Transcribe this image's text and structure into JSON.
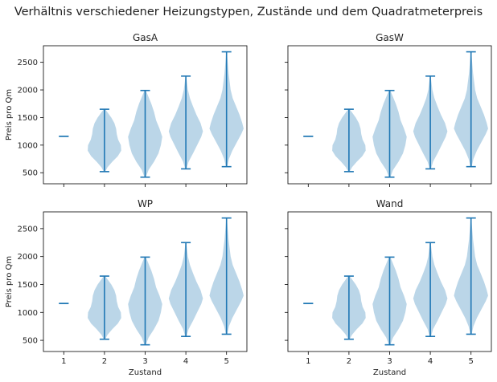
{
  "figure": {
    "suptitle": "Verhältnis verschiedener Heizungstypen, Zustände und dem Quadratmeterpreis"
  },
  "style": {
    "violin_fill": "#1f77b4",
    "violin_fill_opacity": 0.3,
    "line_color": "#1f77b4",
    "axis_color": "#000000"
  },
  "chart_data": [
    {
      "type": "violin",
      "title": "GasA",
      "xlabel": "",
      "ylabel": "Preis pro Qm",
      "x_ticks": [
        "1",
        "2",
        "3",
        "4",
        "5"
      ],
      "x_tick_labels_visible": false,
      "y_ticks": [
        500,
        1000,
        1500,
        2000,
        2500
      ],
      "y_tick_labels_visible": true,
      "ylim": [
        300,
        2800
      ],
      "grid": false,
      "violins": [
        {
          "x": 1,
          "min": 1160,
          "max": 1160,
          "width": 0,
          "shape": [
            [
              1160,
              0
            ]
          ]
        },
        {
          "x": 2,
          "min": 520,
          "max": 1650,
          "width": 0.42,
          "shape": [
            [
              520,
              0.04
            ],
            [
              600,
              0.18
            ],
            [
              700,
              0.46
            ],
            [
              800,
              0.78
            ],
            [
              900,
              0.98
            ],
            [
              1000,
              0.96
            ],
            [
              1100,
              0.8
            ],
            [
              1200,
              0.72
            ],
            [
              1300,
              0.68
            ],
            [
              1400,
              0.58
            ],
            [
              1500,
              0.4
            ],
            [
              1600,
              0.16
            ],
            [
              1650,
              0.04
            ]
          ]
        },
        {
          "x": 3,
          "min": 420,
          "max": 1990,
          "width": 0.42,
          "shape": [
            [
              420,
              0.04
            ],
            [
              550,
              0.2
            ],
            [
              700,
              0.52
            ],
            [
              850,
              0.78
            ],
            [
              1000,
              0.92
            ],
            [
              1150,
              1.0
            ],
            [
              1300,
              0.84
            ],
            [
              1450,
              0.64
            ],
            [
              1600,
              0.52
            ],
            [
              1750,
              0.36
            ],
            [
              1900,
              0.16
            ],
            [
              1990,
              0.04
            ]
          ]
        },
        {
          "x": 4,
          "min": 570,
          "max": 2250,
          "width": 0.42,
          "shape": [
            [
              570,
              0.04
            ],
            [
              700,
              0.16
            ],
            [
              850,
              0.42
            ],
            [
              1000,
              0.66
            ],
            [
              1150,
              0.9
            ],
            [
              1250,
              1.0
            ],
            [
              1400,
              0.86
            ],
            [
              1550,
              0.62
            ],
            [
              1700,
              0.42
            ],
            [
              1850,
              0.24
            ],
            [
              2000,
              0.12
            ],
            [
              2150,
              0.06
            ],
            [
              2250,
              0.02
            ]
          ]
        },
        {
          "x": 5,
          "min": 610,
          "max": 2690,
          "width": 0.42,
          "shape": [
            [
              610,
              0.04
            ],
            [
              750,
              0.14
            ],
            [
              900,
              0.34
            ],
            [
              1050,
              0.6
            ],
            [
              1200,
              0.86
            ],
            [
              1300,
              1.0
            ],
            [
              1400,
              0.92
            ],
            [
              1550,
              0.76
            ],
            [
              1700,
              0.56
            ],
            [
              1850,
              0.36
            ],
            [
              2000,
              0.24
            ],
            [
              2150,
              0.18
            ],
            [
              2300,
              0.12
            ],
            [
              2450,
              0.08
            ],
            [
              2600,
              0.04
            ],
            [
              2690,
              0.02
            ]
          ]
        }
      ]
    },
    {
      "type": "violin",
      "title": "GasW",
      "xlabel": "",
      "ylabel": "",
      "x_ticks": [
        "1",
        "2",
        "3",
        "4",
        "5"
      ],
      "x_tick_labels_visible": false,
      "y_ticks": [
        500,
        1000,
        1500,
        2000,
        2500
      ],
      "y_tick_labels_visible": false,
      "ylim": [
        300,
        2800
      ],
      "grid": false,
      "violins": [
        {
          "x": 1,
          "min": 1160,
          "max": 1160,
          "width": 0,
          "shape": [
            [
              1160,
              0
            ]
          ]
        },
        {
          "x": 2,
          "min": 520,
          "max": 1650,
          "width": 0.42,
          "shape": [
            [
              520,
              0.04
            ],
            [
              600,
              0.18
            ],
            [
              700,
              0.46
            ],
            [
              800,
              0.78
            ],
            [
              900,
              0.98
            ],
            [
              1000,
              0.96
            ],
            [
              1100,
              0.8
            ],
            [
              1200,
              0.72
            ],
            [
              1300,
              0.68
            ],
            [
              1400,
              0.58
            ],
            [
              1500,
              0.4
            ],
            [
              1600,
              0.16
            ],
            [
              1650,
              0.04
            ]
          ]
        },
        {
          "x": 3,
          "min": 420,
          "max": 1990,
          "width": 0.42,
          "shape": [
            [
              420,
              0.04
            ],
            [
              550,
              0.2
            ],
            [
              700,
              0.52
            ],
            [
              850,
              0.78
            ],
            [
              1000,
              0.92
            ],
            [
              1150,
              1.0
            ],
            [
              1300,
              0.84
            ],
            [
              1450,
              0.64
            ],
            [
              1600,
              0.52
            ],
            [
              1750,
              0.36
            ],
            [
              1900,
              0.16
            ],
            [
              1990,
              0.04
            ]
          ]
        },
        {
          "x": 4,
          "min": 570,
          "max": 2250,
          "width": 0.42,
          "shape": [
            [
              570,
              0.04
            ],
            [
              700,
              0.16
            ],
            [
              850,
              0.42
            ],
            [
              1000,
              0.66
            ],
            [
              1150,
              0.9
            ],
            [
              1250,
              1.0
            ],
            [
              1400,
              0.86
            ],
            [
              1550,
              0.62
            ],
            [
              1700,
              0.42
            ],
            [
              1850,
              0.24
            ],
            [
              2000,
              0.12
            ],
            [
              2150,
              0.06
            ],
            [
              2250,
              0.02
            ]
          ]
        },
        {
          "x": 5,
          "min": 610,
          "max": 2690,
          "width": 0.42,
          "shape": [
            [
              610,
              0.04
            ],
            [
              750,
              0.14
            ],
            [
              900,
              0.34
            ],
            [
              1050,
              0.6
            ],
            [
              1200,
              0.86
            ],
            [
              1300,
              1.0
            ],
            [
              1400,
              0.92
            ],
            [
              1550,
              0.76
            ],
            [
              1700,
              0.56
            ],
            [
              1850,
              0.36
            ],
            [
              2000,
              0.24
            ],
            [
              2150,
              0.18
            ],
            [
              2300,
              0.12
            ],
            [
              2450,
              0.08
            ],
            [
              2600,
              0.04
            ],
            [
              2690,
              0.02
            ]
          ]
        }
      ]
    },
    {
      "type": "violin",
      "title": "WP",
      "xlabel": "Zustand",
      "ylabel": "Preis pro Qm",
      "x_ticks": [
        "1",
        "2",
        "3",
        "4",
        "5"
      ],
      "x_tick_labels_visible": true,
      "y_ticks": [
        500,
        1000,
        1500,
        2000,
        2500
      ],
      "y_tick_labels_visible": true,
      "ylim": [
        300,
        2800
      ],
      "grid": false,
      "violins": [
        {
          "x": 1,
          "min": 1160,
          "max": 1160,
          "width": 0,
          "shape": [
            [
              1160,
              0
            ]
          ]
        },
        {
          "x": 2,
          "min": 520,
          "max": 1650,
          "width": 0.42,
          "shape": [
            [
              520,
              0.04
            ],
            [
              600,
              0.18
            ],
            [
              700,
              0.46
            ],
            [
              800,
              0.78
            ],
            [
              900,
              0.98
            ],
            [
              1000,
              0.96
            ],
            [
              1100,
              0.8
            ],
            [
              1200,
              0.72
            ],
            [
              1300,
              0.68
            ],
            [
              1400,
              0.58
            ],
            [
              1500,
              0.4
            ],
            [
              1600,
              0.16
            ],
            [
              1650,
              0.04
            ]
          ]
        },
        {
          "x": 3,
          "min": 420,
          "max": 1990,
          "width": 0.42,
          "shape": [
            [
              420,
              0.04
            ],
            [
              550,
              0.2
            ],
            [
              700,
              0.52
            ],
            [
              850,
              0.78
            ],
            [
              1000,
              0.92
            ],
            [
              1150,
              1.0
            ],
            [
              1300,
              0.84
            ],
            [
              1450,
              0.64
            ],
            [
              1600,
              0.52
            ],
            [
              1750,
              0.36
            ],
            [
              1900,
              0.16
            ],
            [
              1990,
              0.04
            ]
          ]
        },
        {
          "x": 4,
          "min": 570,
          "max": 2250,
          "width": 0.42,
          "shape": [
            [
              570,
              0.04
            ],
            [
              700,
              0.16
            ],
            [
              850,
              0.42
            ],
            [
              1000,
              0.66
            ],
            [
              1150,
              0.9
            ],
            [
              1250,
              1.0
            ],
            [
              1400,
              0.86
            ],
            [
              1550,
              0.62
            ],
            [
              1700,
              0.42
            ],
            [
              1850,
              0.24
            ],
            [
              2000,
              0.12
            ],
            [
              2150,
              0.06
            ],
            [
              2250,
              0.02
            ]
          ]
        },
        {
          "x": 5,
          "min": 610,
          "max": 2690,
          "width": 0.42,
          "shape": [
            [
              610,
              0.04
            ],
            [
              750,
              0.14
            ],
            [
              900,
              0.34
            ],
            [
              1050,
              0.6
            ],
            [
              1200,
              0.86
            ],
            [
              1300,
              1.0
            ],
            [
              1400,
              0.92
            ],
            [
              1550,
              0.76
            ],
            [
              1700,
              0.56
            ],
            [
              1850,
              0.36
            ],
            [
              2000,
              0.24
            ],
            [
              2150,
              0.18
            ],
            [
              2300,
              0.12
            ],
            [
              2450,
              0.08
            ],
            [
              2600,
              0.04
            ],
            [
              2690,
              0.02
            ]
          ]
        }
      ]
    },
    {
      "type": "violin",
      "title": "Wand",
      "xlabel": "Zustand",
      "ylabel": "",
      "x_ticks": [
        "1",
        "2",
        "3",
        "4",
        "5"
      ],
      "x_tick_labels_visible": true,
      "y_ticks": [
        500,
        1000,
        1500,
        2000,
        2500
      ],
      "y_tick_labels_visible": false,
      "ylim": [
        300,
        2800
      ],
      "grid": false,
      "violins": [
        {
          "x": 1,
          "min": 1160,
          "max": 1160,
          "width": 0,
          "shape": [
            [
              1160,
              0
            ]
          ]
        },
        {
          "x": 2,
          "min": 520,
          "max": 1650,
          "width": 0.42,
          "shape": [
            [
              520,
              0.04
            ],
            [
              600,
              0.18
            ],
            [
              700,
              0.46
            ],
            [
              800,
              0.78
            ],
            [
              900,
              0.98
            ],
            [
              1000,
              0.96
            ],
            [
              1100,
              0.8
            ],
            [
              1200,
              0.72
            ],
            [
              1300,
              0.68
            ],
            [
              1400,
              0.58
            ],
            [
              1500,
              0.4
            ],
            [
              1600,
              0.16
            ],
            [
              1650,
              0.04
            ]
          ]
        },
        {
          "x": 3,
          "min": 420,
          "max": 1990,
          "width": 0.42,
          "shape": [
            [
              420,
              0.04
            ],
            [
              550,
              0.2
            ],
            [
              700,
              0.52
            ],
            [
              850,
              0.78
            ],
            [
              1000,
              0.92
            ],
            [
              1150,
              1.0
            ],
            [
              1300,
              0.84
            ],
            [
              1450,
              0.64
            ],
            [
              1600,
              0.52
            ],
            [
              1750,
              0.36
            ],
            [
              1900,
              0.16
            ],
            [
              1990,
              0.04
            ]
          ]
        },
        {
          "x": 4,
          "min": 570,
          "max": 2250,
          "width": 0.42,
          "shape": [
            [
              570,
              0.04
            ],
            [
              700,
              0.16
            ],
            [
              850,
              0.42
            ],
            [
              1000,
              0.66
            ],
            [
              1150,
              0.9
            ],
            [
              1250,
              1.0
            ],
            [
              1400,
              0.86
            ],
            [
              1550,
              0.62
            ],
            [
              1700,
              0.42
            ],
            [
              1850,
              0.24
            ],
            [
              2000,
              0.12
            ],
            [
              2150,
              0.06
            ],
            [
              2250,
              0.02
            ]
          ]
        },
        {
          "x": 5,
          "min": 610,
          "max": 2690,
          "width": 0.42,
          "shape": [
            [
              610,
              0.04
            ],
            [
              750,
              0.14
            ],
            [
              900,
              0.34
            ],
            [
              1050,
              0.6
            ],
            [
              1200,
              0.86
            ],
            [
              1300,
              1.0
            ],
            [
              1400,
              0.92
            ],
            [
              1550,
              0.76
            ],
            [
              1700,
              0.56
            ],
            [
              1850,
              0.36
            ],
            [
              2000,
              0.24
            ],
            [
              2150,
              0.18
            ],
            [
              2300,
              0.12
            ],
            [
              2450,
              0.08
            ],
            [
              2600,
              0.04
            ],
            [
              2690,
              0.02
            ]
          ]
        }
      ]
    }
  ]
}
